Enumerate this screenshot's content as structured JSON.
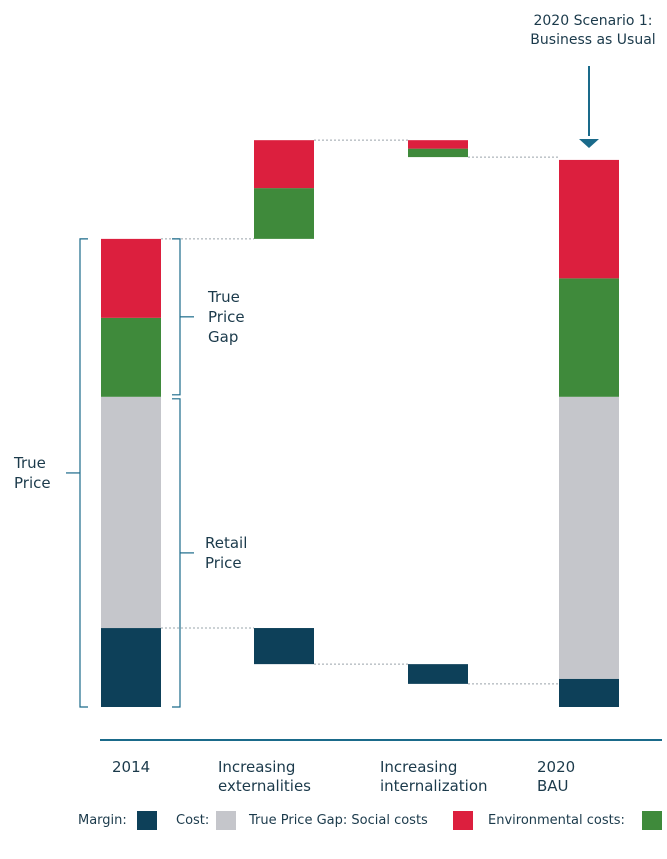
{
  "chart_data": {
    "type": "waterfall",
    "categories": [
      "2014",
      "Increasing externalities",
      "Increasing internalization",
      "2020 BAU"
    ],
    "series": [
      {
        "name": "Margin:",
        "color": "#0d4059",
        "values": [
          14,
          -6.4,
          -3.5,
          5
        ]
      },
      {
        "name": "Cost:",
        "color": "#c5c6cb",
        "values": [
          41,
          null,
          null,
          50
        ]
      },
      {
        "name": "True Price Gap: Social costs",
        "color": "#dc1f3e",
        "values": [
          14,
          8.5,
          -1.5,
          21
        ]
      },
      {
        "name": "Environmental costs:",
        "color": "#3f8a3b",
        "values": [
          14,
          9,
          -1.5,
          21
        ]
      }
    ],
    "ylim": [
      0,
      100
    ],
    "annotations": {
      "true_price": [
        "True",
        "Price"
      ],
      "true_price_gap": [
        "True",
        "Price",
        "Gap"
      ],
      "retail_price": [
        "Retail",
        "Price"
      ],
      "scenario": "2020 Scenario 1: Business as Usual"
    }
  }
}
